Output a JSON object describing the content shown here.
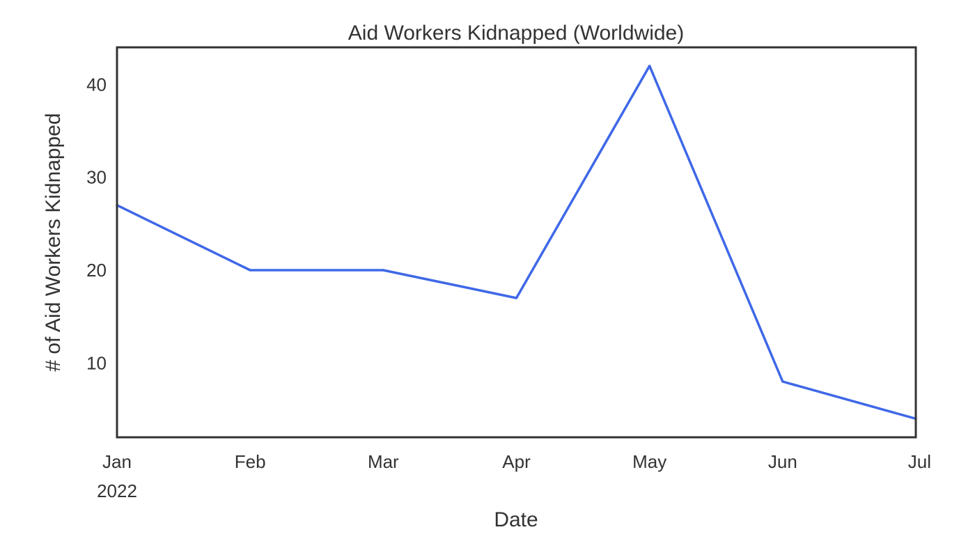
{
  "chart_data": {
    "type": "line",
    "title": "Aid Workers Kidnapped (Worldwide)",
    "xlabel": "Date",
    "ylabel": "# of Aid Workers Kidnapped",
    "x": [
      "2022-01",
      "2022-02",
      "2022-03",
      "2022-04",
      "2022-05",
      "2022-06",
      "2022-07"
    ],
    "x_tick_labels": [
      {
        "label": "Jan",
        "sublabel": "2022"
      },
      {
        "label": "Feb",
        "sublabel": ""
      },
      {
        "label": "Mar",
        "sublabel": ""
      },
      {
        "label": "Apr",
        "sublabel": ""
      },
      {
        "label": "May",
        "sublabel": ""
      },
      {
        "label": "Jun",
        "sublabel": ""
      },
      {
        "label": "Jul",
        "sublabel": ""
      }
    ],
    "series": [
      {
        "values": [
          27,
          20,
          20,
          17,
          42,
          8,
          4
        ],
        "color": "#3f68e8"
      }
    ],
    "ylim": [
      2,
      44
    ],
    "y_ticks": [
      10,
      20,
      30,
      40
    ],
    "grid": false,
    "frame_color": "#333333"
  }
}
